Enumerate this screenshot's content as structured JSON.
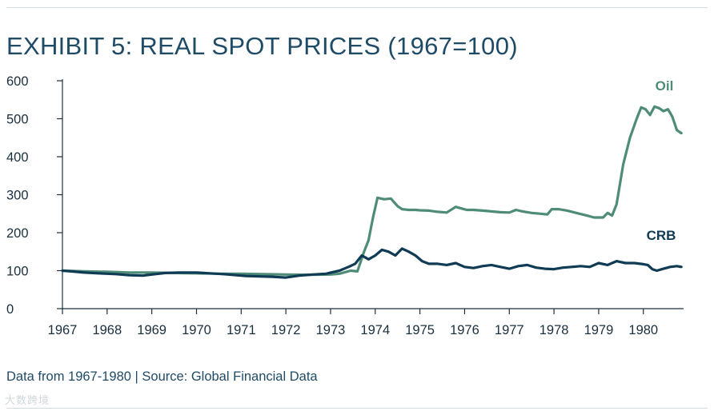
{
  "title": "EXHIBIT 5: REAL SPOT PRICES (1967=100)",
  "source": "Data from 1967-1980 | Source: Global Financial Data",
  "watermark": "大数跨境",
  "colors": {
    "oil": "#4e8c78",
    "crb": "#0f3b55",
    "axis": "#1a2f3d",
    "rule": "#cfdde3"
  },
  "chart_data": {
    "type": "line",
    "title": "EXHIBIT 5: REAL SPOT PRICES (1967=100)",
    "xlabel": "",
    "ylabel": "",
    "xlim": [
      1967,
      1980.9
    ],
    "ylim": [
      0,
      600
    ],
    "grid": false,
    "x_ticks": [
      1967,
      1968,
      1969,
      1970,
      1971,
      1972,
      1973,
      1974,
      1975,
      1976,
      1977,
      1978,
      1979,
      1980
    ],
    "y_ticks": [
      0,
      100,
      200,
      300,
      400,
      500,
      600
    ],
    "series": [
      {
        "name": "Oil",
        "color": "#4e8c78",
        "x": [
          1967,
          1967.5,
          1968,
          1968.5,
          1969,
          1969.5,
          1970,
          1970.5,
          1971,
          1971.5,
          1972,
          1972.5,
          1973,
          1973.2,
          1973.45,
          1973.6,
          1973.75,
          1973.85,
          1973.95,
          1974.05,
          1974.2,
          1974.35,
          1974.5,
          1974.6,
          1974.75,
          1974.9,
          1975,
          1975.2,
          1975.4,
          1975.6,
          1975.8,
          1975.95,
          1976.05,
          1976.2,
          1976.4,
          1976.6,
          1976.8,
          1977,
          1977.15,
          1977.3,
          1977.5,
          1977.7,
          1977.85,
          1977.95,
          1978.1,
          1978.3,
          1978.5,
          1978.7,
          1978.9,
          1979.1,
          1979.2,
          1979.3,
          1979.4,
          1979.55,
          1979.7,
          1979.85,
          1979.95,
          1980.05,
          1980.15,
          1980.25,
          1980.35,
          1980.45,
          1980.55,
          1980.65,
          1980.75,
          1980.85
        ],
        "values": [
          100,
          98,
          97,
          95,
          95,
          94,
          93,
          92,
          92,
          91,
          90,
          89,
          90,
          92,
          100,
          98,
          150,
          180,
          240,
          292,
          288,
          290,
          270,
          262,
          260,
          260,
          259,
          258,
          255,
          253,
          268,
          263,
          260,
          260,
          258,
          256,
          254,
          253,
          260,
          256,
          252,
          250,
          248,
          262,
          262,
          258,
          252,
          246,
          240,
          240,
          252,
          245,
          275,
          380,
          450,
          500,
          530,
          525,
          510,
          532,
          528,
          520,
          525,
          505,
          470,
          462
        ]
      },
      {
        "name": "CRB",
        "color": "#0f3b55",
        "x": [
          1967,
          1967.2,
          1967.5,
          1967.8,
          1968,
          1968.2,
          1968.5,
          1968.8,
          1969,
          1969.3,
          1969.6,
          1970,
          1970.3,
          1970.6,
          1970.9,
          1971.1,
          1971.4,
          1971.7,
          1972,
          1972.3,
          1972.6,
          1972.9,
          1973,
          1973.2,
          1973.4,
          1973.55,
          1973.7,
          1973.85,
          1974,
          1974.15,
          1974.3,
          1974.45,
          1974.6,
          1974.75,
          1974.9,
          1975.05,
          1975.2,
          1975.4,
          1975.6,
          1975.8,
          1976,
          1976.2,
          1976.4,
          1976.6,
          1976.8,
          1977,
          1977.2,
          1977.4,
          1977.6,
          1977.8,
          1978,
          1978.2,
          1978.4,
          1978.6,
          1978.8,
          1979,
          1979.2,
          1979.4,
          1979.6,
          1979.8,
          1980,
          1980.1,
          1980.2,
          1980.3,
          1980.45,
          1980.6,
          1980.75,
          1980.85
        ],
        "values": [
          100,
          98,
          95,
          93,
          92,
          91,
          88,
          87,
          90,
          94,
          95,
          95,
          93,
          91,
          88,
          86,
          85,
          84,
          82,
          87,
          90,
          92,
          95,
          100,
          110,
          118,
          140,
          130,
          140,
          155,
          150,
          140,
          158,
          150,
          140,
          125,
          118,
          118,
          115,
          120,
          110,
          107,
          112,
          115,
          110,
          105,
          112,
          115,
          108,
          105,
          104,
          108,
          110,
          112,
          110,
          120,
          115,
          125,
          120,
          120,
          117,
          115,
          104,
          100,
          105,
          110,
          112,
          110
        ]
      }
    ]
  }
}
